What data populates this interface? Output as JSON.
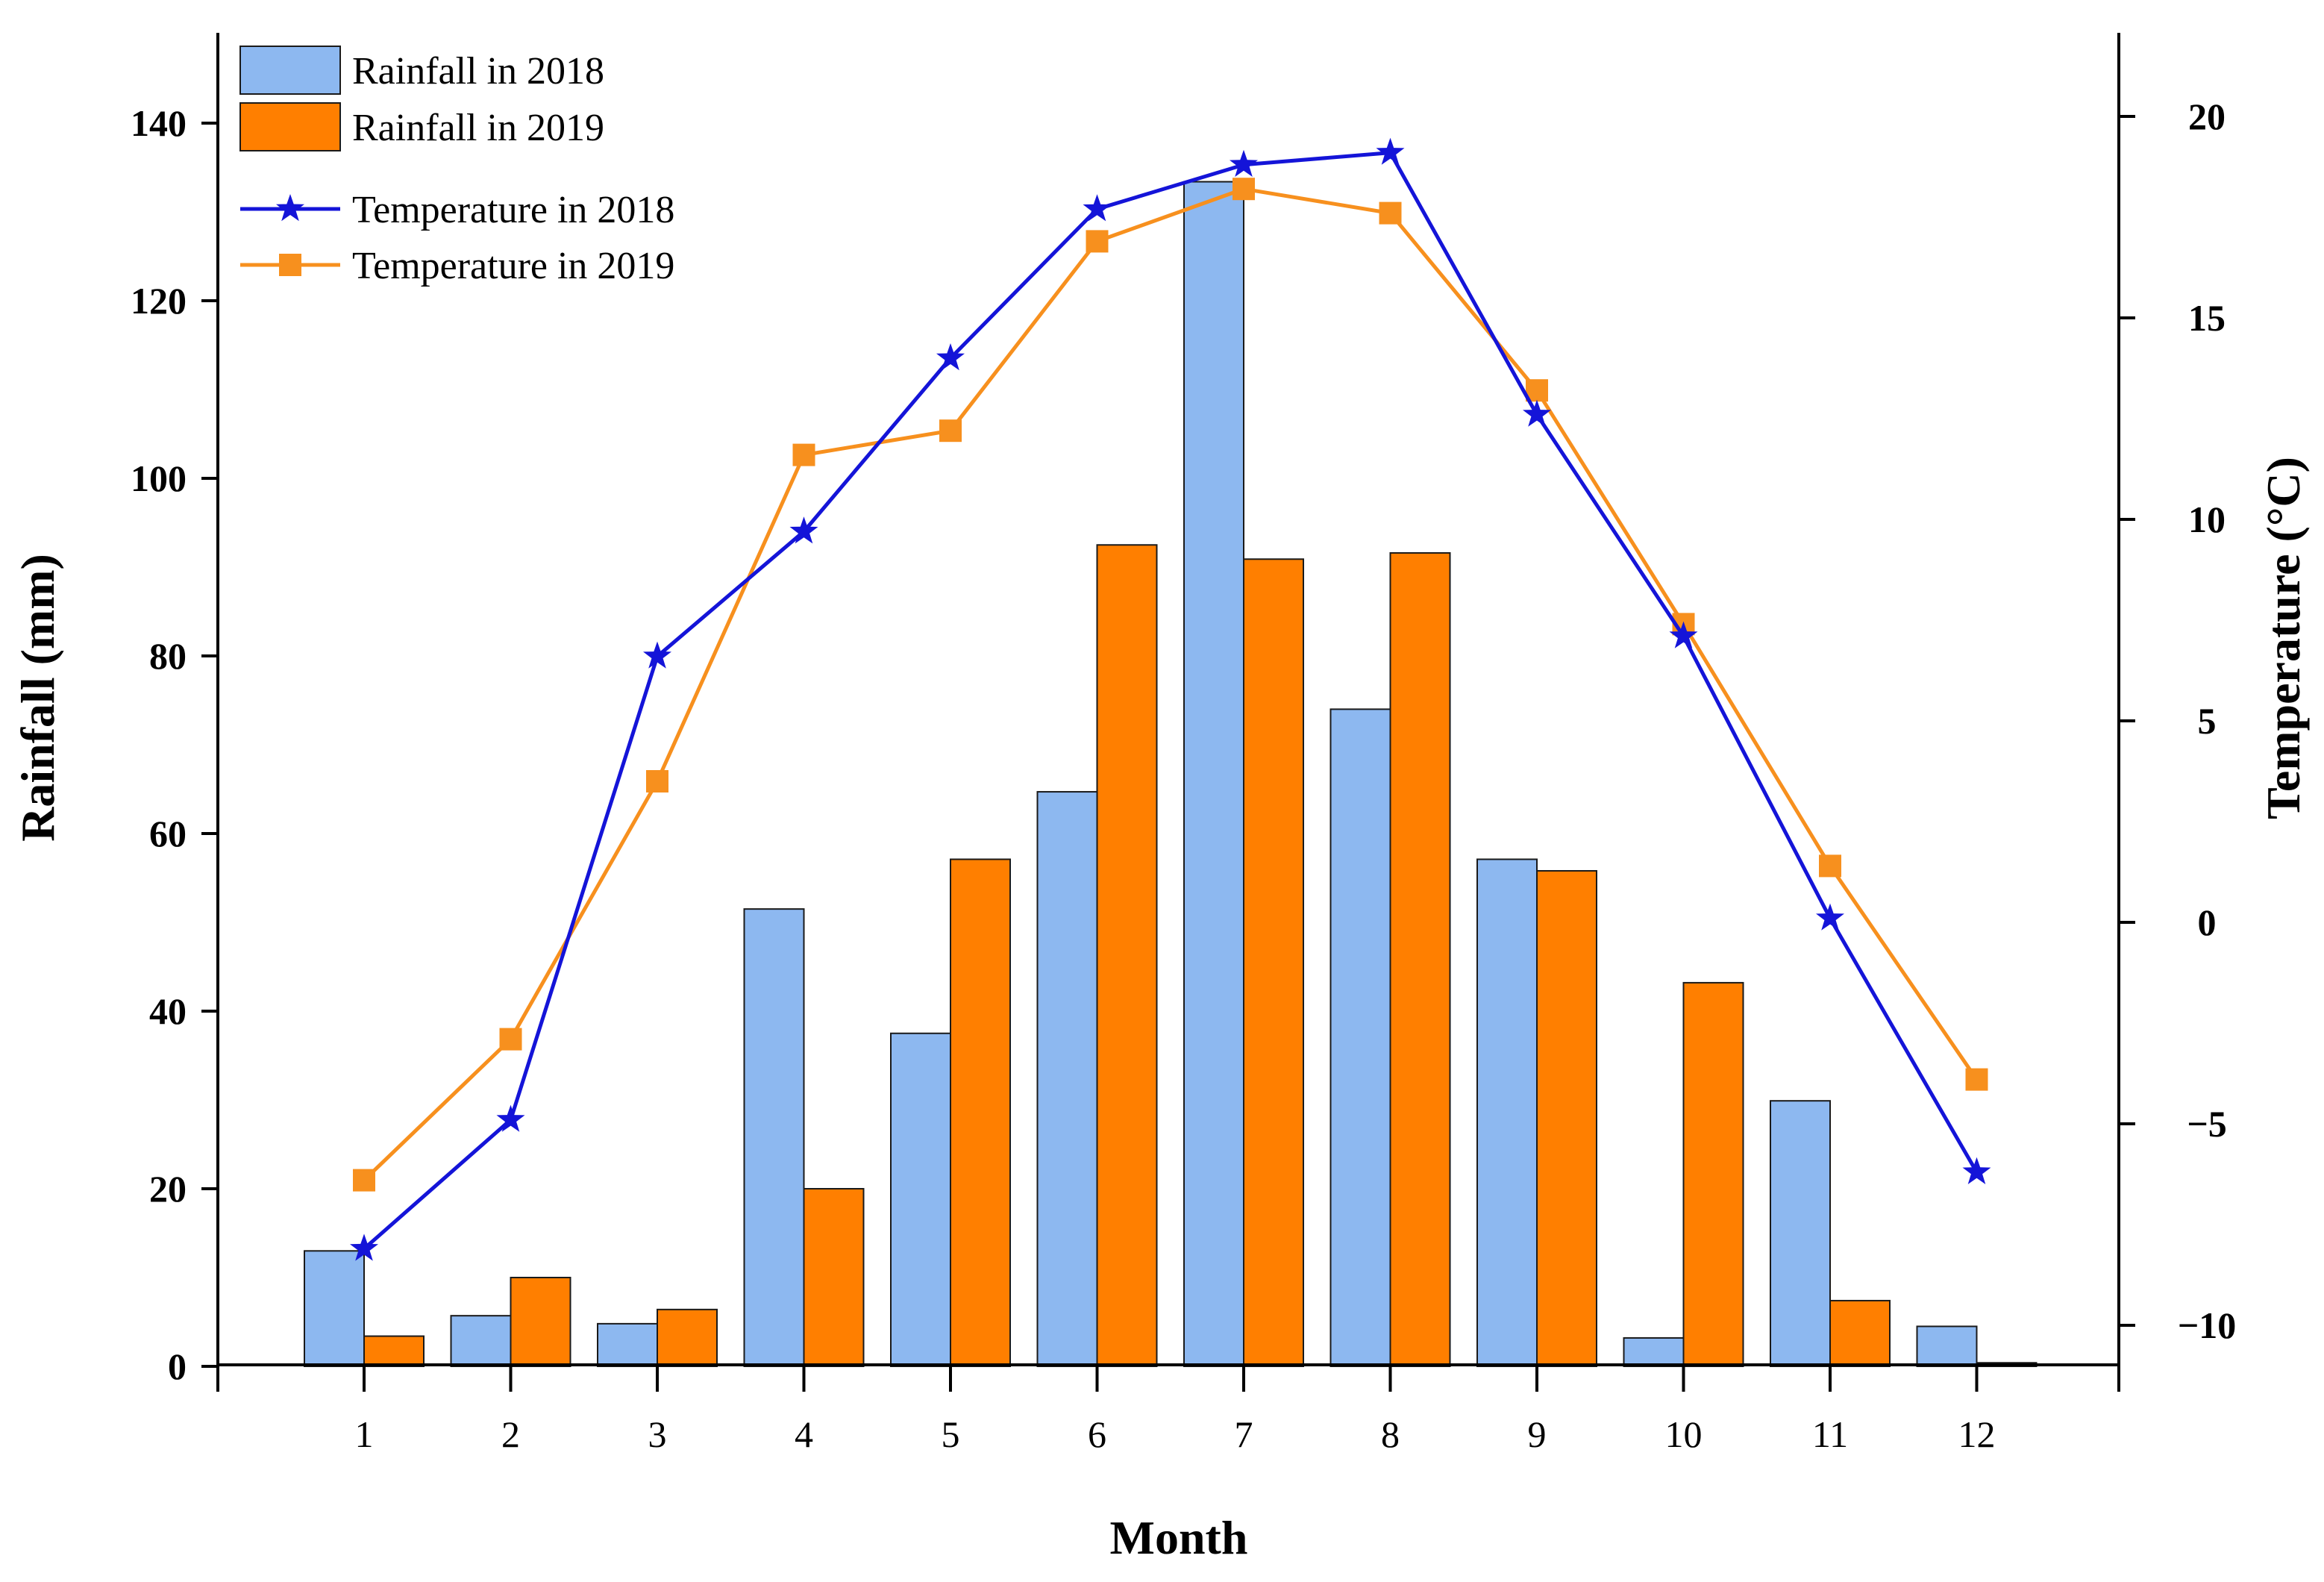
{
  "chart_data": {
    "type": "bar",
    "title": "",
    "xlabel": "Month",
    "ylabel": "Rainfall (mm)",
    "y2label": "Temperature (°C)",
    "categories": [
      "1",
      "2",
      "3",
      "4",
      "5",
      "6",
      "7",
      "8",
      "9",
      "10",
      "11",
      "12"
    ],
    "ylim": [
      0,
      150
    ],
    "y_ticks": [
      "0",
      "20",
      "40",
      "60",
      "80",
      "100",
      "120",
      "140"
    ],
    "y2lim": [
      -11,
      22
    ],
    "y2_ticks": [
      "−10",
      "−5",
      "0",
      "5",
      "10",
      "15",
      "20"
    ],
    "y2_tick_values": [
      -10,
      -5,
      0,
      5,
      10,
      15,
      20
    ],
    "grid": false,
    "legend_position": "top-left",
    "series": [
      {
        "name": "Rainfall in 2018",
        "kind": "bar",
        "axis": "left",
        "color": "#8db8f0",
        "values": [
          13,
          5.7,
          4.8,
          51.5,
          37.5,
          64.7,
          133.4,
          74,
          57.1,
          3.2,
          29.9,
          4.5
        ]
      },
      {
        "name": "Rainfall in 2019",
        "kind": "bar",
        "axis": "left",
        "color": "#ff7f00",
        "values": [
          3.4,
          10,
          6.4,
          20,
          57.1,
          92.5,
          90.9,
          91.6,
          55.8,
          43.2,
          7.4,
          0.4
        ]
      },
      {
        "name": "Temperature in 2018",
        "kind": "line",
        "axis": "right",
        "marker": "star",
        "color": "#1414d8",
        "values": [
          -8.1,
          -4.9,
          6.6,
          9.7,
          14,
          17.7,
          18.8,
          19.1,
          12.6,
          7.1,
          0.1,
          -6.2
        ]
      },
      {
        "name": "Temperature in 2019",
        "kind": "line",
        "axis": "right",
        "marker": "square",
        "color": "#f7901e",
        "values": [
          -6.4,
          -2.9,
          3.5,
          11.6,
          12.2,
          16.9,
          18.2,
          17.6,
          13.2,
          7.4,
          1.4,
          -3.9
        ]
      }
    ]
  }
}
